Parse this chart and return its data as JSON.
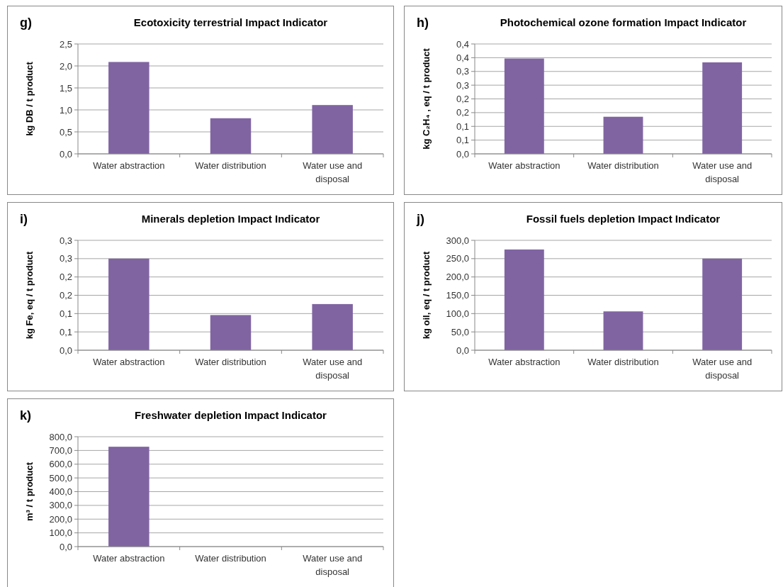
{
  "chart_data": [
    {
      "type": "bar",
      "title": "Ecotoxicity terrestrial Impact Indicator",
      "annotations": [
        "g)"
      ],
      "ylabel": "kg DB / t product",
      "categories": [
        "Water abstraction",
        "Water distribution",
        "Water use and disposal"
      ],
      "series": [
        {
          "color": "#8064a2",
          "values": [
            2.09,
            0.81,
            1.11
          ]
        }
      ],
      "ylim": [
        0,
        2.5
      ],
      "yticks": [
        {
          "value": 0,
          "label": "0,0"
        },
        {
          "value": 0.5,
          "label": "0,5"
        },
        {
          "value": 1,
          "label": "1,0"
        },
        {
          "value": 1.5,
          "label": "1,5"
        },
        {
          "value": 2,
          "label": "2,0"
        },
        {
          "value": 2.5,
          "label": "2,5"
        }
      ],
      "grid": "y"
    },
    {
      "type": "bar",
      "title": "Photochemical ozone formation Impact Indicator",
      "annotations": [
        "h)"
      ],
      "ylabel": "kg C₂H₄ , eq / t product",
      "categories": [
        "Water abstraction",
        "Water distribution",
        "Water use and disposal"
      ],
      "series": [
        {
          "color": "#8064a2",
          "values": [
            0.347,
            0.135,
            0.333
          ]
        }
      ],
      "ylim": [
        0,
        0.4
      ],
      "yticks": [
        {
          "value": 0,
          "label": "0,0"
        },
        {
          "value": 0.05,
          "label": "0,1"
        },
        {
          "value": 0.1,
          "label": "0,1"
        },
        {
          "value": 0.15,
          "label": "0,2"
        },
        {
          "value": 0.2,
          "label": "0,2"
        },
        {
          "value": 0.25,
          "label": "0,3"
        },
        {
          "value": 0.3,
          "label": "0,3"
        },
        {
          "value": 0.35,
          "label": "0,4"
        },
        {
          "value": 0.4,
          "label": "0,4"
        }
      ],
      "grid": "y"
    },
    {
      "type": "bar",
      "title": "Minerals depletion Impact Indicator",
      "annotations": [
        "i)"
      ],
      "ylabel": "kg Fe, eq / t product",
      "categories": [
        "Water abstraction",
        "Water distribution",
        "Water use and disposal"
      ],
      "series": [
        {
          "color": "#8064a2",
          "values": [
            0.25,
            0.096,
            0.126
          ]
        }
      ],
      "ylim": [
        0,
        0.3
      ],
      "yticks": [
        {
          "value": 0,
          "label": "0,0"
        },
        {
          "value": 0.05,
          "label": "0,1"
        },
        {
          "value": 0.1,
          "label": "0,1"
        },
        {
          "value": 0.15,
          "label": "0,2"
        },
        {
          "value": 0.2,
          "label": "0,2"
        },
        {
          "value": 0.25,
          "label": "0,3"
        },
        {
          "value": 0.3,
          "label": "0,3"
        }
      ],
      "grid": "y"
    },
    {
      "type": "bar",
      "title": "Fossil fuels depletion Impact Indicator",
      "annotations": [
        "j)"
      ],
      "ylabel": "kg oil, eq / t product",
      "categories": [
        "Water abstraction",
        "Water distribution",
        "Water use and disposal"
      ],
      "series": [
        {
          "color": "#8064a2",
          "values": [
            275,
            106,
            250
          ]
        }
      ],
      "ylim": [
        0,
        300
      ],
      "yticks": [
        {
          "value": 0,
          "label": "0,0"
        },
        {
          "value": 50,
          "label": "50,0"
        },
        {
          "value": 100,
          "label": "100,0"
        },
        {
          "value": 150,
          "label": "150,0"
        },
        {
          "value": 200,
          "label": "200,0"
        },
        {
          "value": 250,
          "label": "250,0"
        },
        {
          "value": 300,
          "label": "300,0"
        }
      ],
      "grid": "y"
    },
    {
      "type": "bar",
      "title": "Freshwater depletion Impact Indicator",
      "annotations": [
        "k)"
      ],
      "ylabel": "m³ / t product",
      "categories": [
        "Water abstraction",
        "Water distribution",
        "Water use and disposal"
      ],
      "series": [
        {
          "color": "#8064a2",
          "values": [
            727,
            0,
            0
          ]
        }
      ],
      "ylim": [
        0,
        800
      ],
      "yticks": [
        {
          "value": 0,
          "label": "0,0"
        },
        {
          "value": 100,
          "label": "100,0"
        },
        {
          "value": 200,
          "label": "200,0"
        },
        {
          "value": 300,
          "label": "300,0"
        },
        {
          "value": 400,
          "label": "400,0"
        },
        {
          "value": 500,
          "label": "500,0"
        },
        {
          "value": 600,
          "label": "600,0"
        },
        {
          "value": 700,
          "label": "700,0"
        },
        {
          "value": 800,
          "label": "800,0"
        }
      ],
      "grid": "y"
    }
  ]
}
